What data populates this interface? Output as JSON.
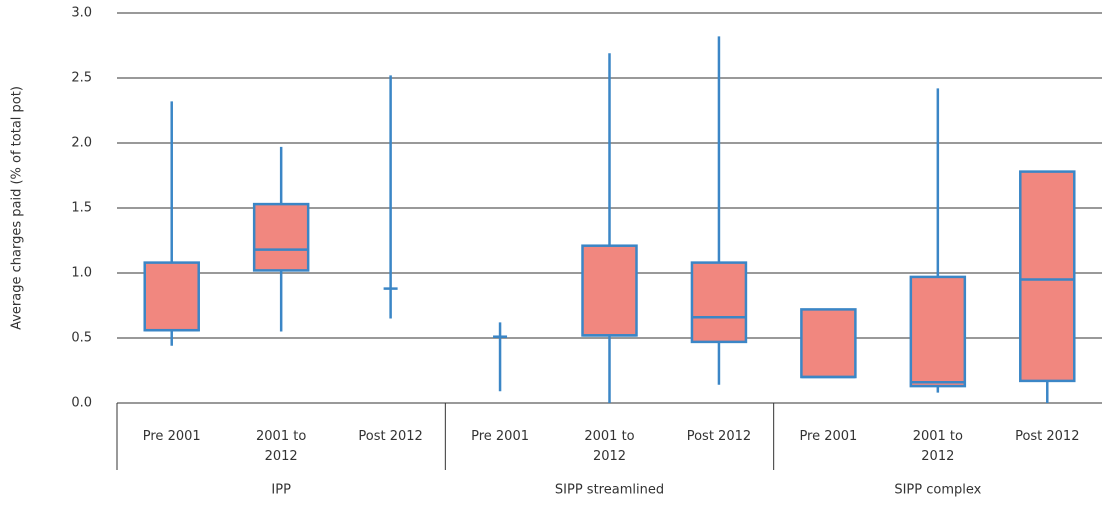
{
  "chart_data": {
    "type": "box",
    "ylabel": "Average charges paid (% of total pot)",
    "ylim": [
      0,
      3
    ],
    "yticks": [
      {
        "value": 0,
        "label": "0.0"
      },
      0.5,
      {
        "value": 1,
        "label": "1.0"
      },
      1.5,
      {
        "value": 2,
        "label": "2.0"
      },
      2.5,
      {
        "value": 3,
        "label": "3.0"
      }
    ],
    "grid": true,
    "fill_color": "#f1877f",
    "line_color": "#3b86c6",
    "groups": [
      {
        "name": "IPP",
        "boxes": [
          {
            "label": "Pre 2001",
            "min": 0.44,
            "q1": 0.56,
            "median": 0.56,
            "q3": 1.08,
            "max": 2.32
          },
          {
            "label": "2001 to 2012",
            "min": 0.55,
            "q1": 1.02,
            "median": 1.18,
            "q3": 1.53,
            "max": 1.97
          },
          {
            "label": "Post 2012",
            "min": 0.65,
            "q1": 0.88,
            "median": 0.88,
            "q3": 0.88,
            "max": 2.52
          }
        ]
      },
      {
        "name": "SIPP streamlined",
        "boxes": [
          {
            "label": "Pre 2001",
            "min": 0.09,
            "q1": 0.51,
            "median": 0.51,
            "q3": 0.51,
            "max": 0.62
          },
          {
            "label": "2001 to 2012",
            "min": 0,
            "q1": 0.52,
            "median": 0.52,
            "q3": 1.21,
            "max": 2.69
          },
          {
            "label": "Post 2012",
            "min": 0.14,
            "q1": 0.47,
            "median": 0.66,
            "q3": 1.08,
            "max": 2.82
          }
        ]
      },
      {
        "name": "SIPP complex",
        "boxes": [
          {
            "label": "Pre 2001",
            "min": 0.2,
            "q1": 0.2,
            "median": 0.2,
            "q3": 0.72,
            "max": 0.72
          },
          {
            "label": "2001 to 2012",
            "min": 0.08,
            "q1": 0.13,
            "median": 0.16,
            "q3": 0.97,
            "max": 2.42
          },
          {
            "label": "Post 2012",
            "min": 0,
            "q1": 0.17,
            "median": 0.95,
            "q3": 1.78,
            "max": 1.78
          }
        ]
      }
    ]
  }
}
